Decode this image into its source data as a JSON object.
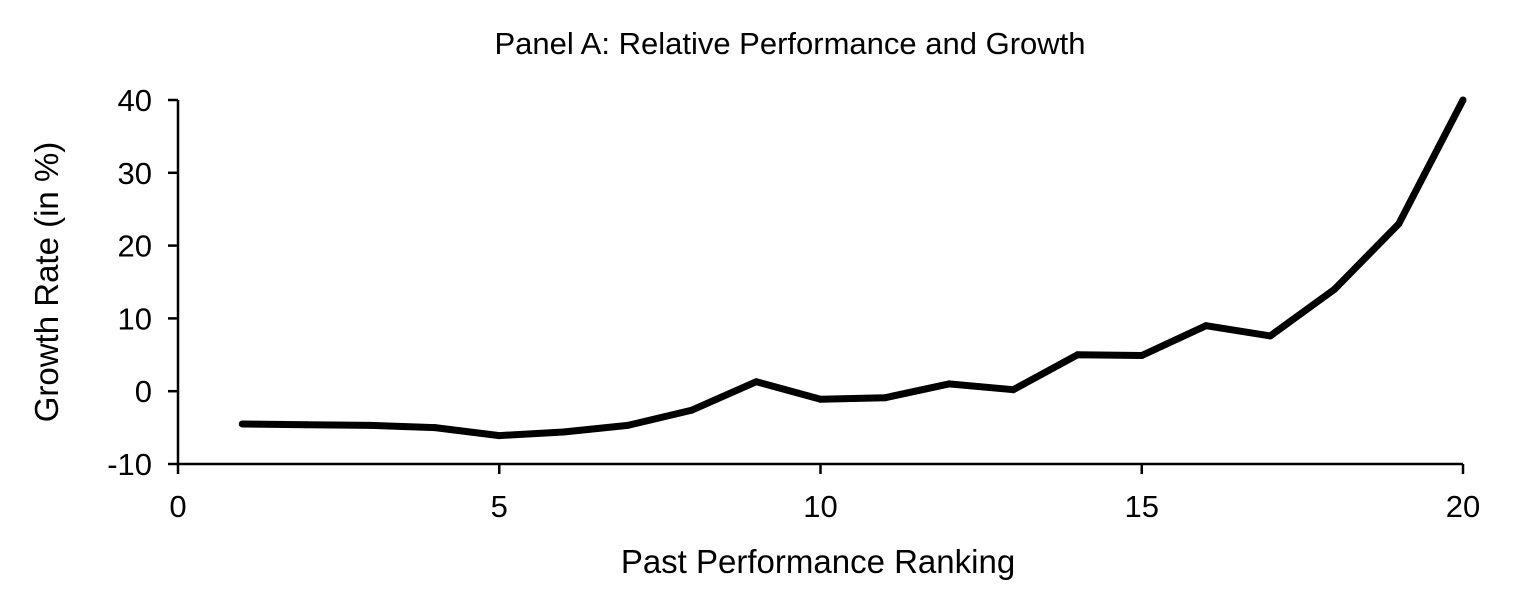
{
  "chart_data": {
    "type": "line",
    "title": "Panel A:  Relative Performance and Growth",
    "xlabel": "Past Performance Ranking",
    "ylabel": "Growth Rate (in %)",
    "xlim": [
      0,
      20
    ],
    "ylim": [
      -10,
      40
    ],
    "xticks": [
      0,
      5,
      10,
      15,
      20
    ],
    "yticks": [
      -10,
      0,
      10,
      20,
      30,
      40
    ],
    "grid": false,
    "legend": "none",
    "line_color": "#000000",
    "series": [
      {
        "x": [
          1,
          2,
          3,
          4,
          5,
          6,
          7,
          8,
          9,
          10,
          11,
          12,
          13,
          14,
          15,
          16,
          17,
          18,
          19,
          20
        ],
        "y": [
          -4.5,
          -4.6,
          -4.7,
          -5.0,
          -6.1,
          -5.6,
          -4.7,
          -2.6,
          1.3,
          -1.1,
          -0.9,
          1.0,
          0.2,
          5.0,
          4.9,
          9.0,
          7.6,
          14.0,
          23.0,
          40.0
        ]
      }
    ]
  }
}
